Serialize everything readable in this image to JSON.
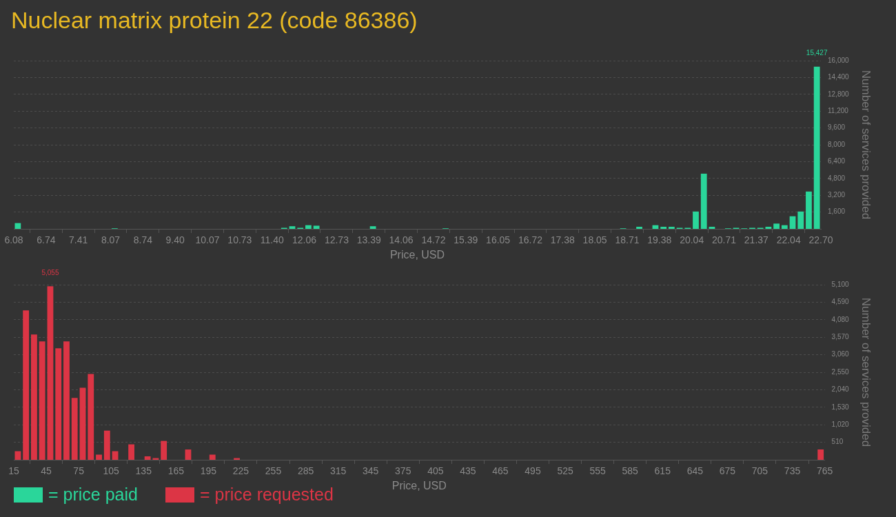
{
  "chart_data": [
    {
      "type": "histogram",
      "title": "Nuclear matrix protein 22 (code 86386)",
      "xlabel": "Price, USD",
      "ylabel": "Number of services provided",
      "bins": [
        6.08,
        6.2462,
        6.4124,
        6.5786,
        6.7448,
        6.911,
        7.0772,
        7.2434,
        7.4096,
        7.5758,
        7.742,
        7.9082,
        8.0744,
        8.2406,
        8.4068,
        8.573,
        8.7392,
        8.9054,
        9.0716,
        9.2378,
        9.404,
        9.5702,
        9.7364,
        9.9026,
        10.0688,
        10.235,
        10.4012,
        10.5674,
        10.7336,
        10.8998,
        11.066,
        11.2322,
        11.3984,
        11.5646,
        11.7308,
        11.897,
        12.0632,
        12.2294,
        12.3956,
        12.5618,
        12.728,
        12.8942,
        13.0604,
        13.2266,
        13.3928,
        13.559,
        13.7252,
        13.8914,
        14.0576,
        14.2238,
        14.39,
        14.5562,
        14.7224,
        14.8886,
        15.0548,
        15.221,
        15.3872,
        15.5534,
        15.7196,
        15.8858,
        16.052,
        16.2182,
        16.3844,
        16.5506,
        16.7168,
        16.883,
        17.0492,
        17.2154,
        17.3816,
        17.5478,
        17.714,
        17.8802,
        18.0464,
        18.2126,
        18.3788,
        18.545,
        18.7112,
        18.8774,
        19.0436,
        19.2098,
        19.376,
        19.5422,
        19.7084,
        19.8746,
        20.0408,
        20.207,
        20.3732,
        20.5394,
        20.7056,
        20.8718,
        21.038,
        21.2042,
        21.3704,
        21.5366,
        21.7028,
        21.869,
        22.0352,
        22.2014,
        22.3676,
        22.5338,
        22.7
      ],
      "series": [
        {
          "name": "= price paid",
          "color": "#2ad69a",
          "values": [
            550,
            0,
            0,
            0,
            0,
            0,
            0,
            0,
            0,
            0,
            0,
            0,
            50,
            0,
            0,
            0,
            0,
            0,
            0,
            0,
            0,
            0,
            0,
            0,
            0,
            0,
            0,
            0,
            0,
            0,
            0,
            0,
            0,
            100,
            250,
            100,
            350,
            300,
            0,
            0,
            0,
            0,
            0,
            0,
            250,
            0,
            0,
            0,
            0,
            0,
            0,
            0,
            0,
            50,
            0,
            0,
            0,
            0,
            0,
            0,
            0,
            0,
            0,
            0,
            0,
            0,
            0,
            0,
            0,
            0,
            0,
            0,
            0,
            0,
            0,
            50,
            0,
            200,
            0,
            350,
            200,
            200,
            100,
            100,
            1650,
            5250,
            200,
            0,
            50,
            100,
            50,
            100,
            100,
            200,
            500,
            350,
            1200,
            1650,
            3550,
            15427
          ],
          "value_labels": [
            null,
            null,
            null,
            null,
            null,
            null,
            null,
            null,
            null,
            null,
            null,
            null,
            null,
            null,
            null,
            null,
            null,
            null,
            null,
            null,
            null,
            null,
            null,
            null,
            null,
            null,
            null,
            null,
            null,
            null,
            null,
            null,
            null,
            null,
            null,
            null,
            null,
            null,
            null,
            null,
            null,
            null,
            null,
            null,
            null,
            null,
            null,
            null,
            null,
            null,
            null,
            null,
            null,
            null,
            null,
            null,
            null,
            null,
            null,
            null,
            null,
            null,
            null,
            null,
            null,
            null,
            null,
            null,
            null,
            null,
            null,
            null,
            null,
            null,
            null,
            null,
            null,
            null,
            null,
            null,
            null,
            null,
            null,
            null,
            null,
            null,
            null,
            null,
            null,
            null,
            null,
            null,
            null,
            null,
            null,
            null,
            null,
            null,
            null,
            "15,427"
          ]
        }
      ],
      "xlim": [
        6.08,
        22.7
      ],
      "xticks": [
        6.08,
        {
          "value": 6.7448,
          "label": "6.74"
        },
        {
          "value": 7.4096,
          "label": "7.41"
        },
        {
          "value": 8.0744,
          "label": "8.07"
        },
        {
          "value": 8.7392,
          "label": "8.74"
        },
        {
          "value": 9.404,
          "label": "9.40"
        },
        {
          "value": 10.0688,
          "label": "10.07"
        },
        {
          "value": 10.7336,
          "label": "10.73"
        },
        {
          "value": 11.3984,
          "label": "11.40"
        },
        {
          "value": 12.0632,
          "label": "12.06"
        },
        {
          "value": 12.728,
          "label": "12.73"
        },
        {
          "value": 13.3928,
          "label": "13.39"
        },
        {
          "value": 14.0576,
          "label": "14.06"
        },
        {
          "value": 14.7224,
          "label": "14.72"
        },
        {
          "value": 15.3872,
          "label": "15.39"
        },
        {
          "value": 16.052,
          "label": "16.05"
        },
        {
          "value": 16.7168,
          "label": "16.72"
        },
        {
          "value": 17.3816,
          "label": "17.38"
        },
        {
          "value": 18.0464,
          "label": "18.05"
        },
        {
          "value": 18.7112,
          "label": "18.71"
        },
        {
          "value": 19.376,
          "label": "19.38"
        },
        {
          "value": 20.0408,
          "label": "20.04"
        },
        {
          "value": 20.7056,
          "label": "20.71"
        },
        {
          "value": 21.3704,
          "label": "21.37"
        },
        {
          "value": 22.0352,
          "label": "22.04"
        },
        {
          "value": 22.7,
          "label": "22.70"
        }
      ],
      "ylim": [
        0,
        16000
      ],
      "yticks": [
        {
          "value": 1600,
          "label": "1,600"
        },
        {
          "value": 3200,
          "label": "3,200"
        },
        {
          "value": 4800,
          "label": "4,800"
        },
        {
          "value": 6400,
          "label": "6,400"
        },
        {
          "value": 8000,
          "label": "8,000"
        },
        {
          "value": 9600,
          "label": "9,600"
        },
        {
          "value": 11200,
          "label": "11,200"
        },
        {
          "value": 12800,
          "label": "12,800"
        },
        {
          "value": 14400,
          "label": "14,400"
        },
        {
          "value": 16000,
          "label": "16,000"
        }
      ],
      "grid": "y",
      "legend": "bottom left"
    },
    {
      "type": "histogram",
      "xlabel": "Price, USD",
      "ylabel": "Number of services provided",
      "bins": [
        15,
        22.5,
        30,
        37.5,
        45,
        52.5,
        60,
        67.5,
        75,
        82.5,
        90,
        97.5,
        105,
        112.5,
        120,
        127.5,
        135,
        142.5,
        150,
        157.5,
        165,
        172.5,
        180,
        187.5,
        195,
        202.5,
        210,
        217.5,
        225,
        232.5,
        240,
        247.5,
        255,
        262.5,
        270,
        277.5,
        285,
        292.5,
        300,
        307.5,
        315,
        322.5,
        330,
        337.5,
        345,
        352.5,
        360,
        367.5,
        375,
        382.5,
        390,
        397.5,
        405,
        412.5,
        420,
        427.5,
        435,
        442.5,
        450,
        457.5,
        465,
        472.5,
        480,
        487.5,
        495,
        502.5,
        510,
        517.5,
        525,
        532.5,
        540,
        547.5,
        555,
        562.5,
        570,
        577.5,
        585,
        592.5,
        600,
        607.5,
        615,
        622.5,
        630,
        637.5,
        645,
        652.5,
        660,
        667.5,
        675,
        682.5,
        690,
        697.5,
        705,
        712.5,
        720,
        727.5,
        735,
        742.5,
        750,
        757.5,
        765
      ],
      "series": [
        {
          "name": "= price requested",
          "color": "#dc3545",
          "values": [
            250,
            4350,
            3650,
            3450,
            5055,
            3250,
            3450,
            1800,
            2100,
            2500,
            150,
            850,
            250,
            0,
            450,
            0,
            100,
            50,
            550,
            0,
            0,
            300,
            0,
            0,
            150,
            0,
            0,
            50,
            0,
            0,
            0,
            0,
            0,
            0,
            0,
            0,
            0,
            0,
            0,
            0,
            0,
            0,
            0,
            0,
            0,
            0,
            0,
            0,
            0,
            0,
            0,
            0,
            0,
            0,
            0,
            0,
            0,
            0,
            0,
            0,
            0,
            0,
            0,
            0,
            0,
            0,
            0,
            0,
            0,
            0,
            0,
            0,
            0,
            0,
            0,
            0,
            0,
            0,
            0,
            0,
            0,
            0,
            0,
            0,
            0,
            0,
            0,
            0,
            0,
            0,
            0,
            0,
            0,
            0,
            0,
            0,
            0,
            0,
            0,
            300
          ],
          "value_labels": [
            null,
            null,
            null,
            null,
            "5,055",
            null,
            null,
            null,
            null,
            null,
            null,
            null,
            null,
            null,
            null,
            null,
            null,
            null,
            null,
            null,
            null,
            null,
            null,
            null,
            null,
            null,
            null,
            null,
            null,
            null,
            null,
            null,
            null,
            null,
            null,
            null,
            null,
            null,
            null,
            null,
            null,
            null,
            null,
            null,
            null,
            null,
            null,
            null,
            null,
            null,
            null,
            null,
            null,
            null,
            null,
            null,
            null,
            null,
            null,
            null,
            null,
            null,
            null,
            null,
            null,
            null,
            null,
            null,
            null,
            null,
            null,
            null,
            null,
            null,
            null,
            null,
            null,
            null,
            null,
            null,
            null,
            null,
            null,
            null,
            null,
            null,
            null,
            null,
            null,
            null,
            null,
            null,
            null,
            null,
            null,
            null,
            null,
            null,
            null,
            null
          ]
        }
      ],
      "xlim": [
        15,
        765
      ],
      "xticks": [
        15,
        45,
        75,
        105,
        135,
        165,
        195,
        225,
        255,
        285,
        315,
        345,
        375,
        405,
        435,
        465,
        495,
        525,
        555,
        585,
        615,
        645,
        675,
        705,
        735,
        765
      ],
      "ylim": [
        0,
        5100
      ],
      "yticks": [
        {
          "value": 510,
          "label": "510"
        },
        {
          "value": 1020,
          "label": "1,020"
        },
        {
          "value": 1530,
          "label": "1,530"
        },
        {
          "value": 2040,
          "label": "2,040"
        },
        {
          "value": 2550,
          "label": "2,550"
        },
        {
          "value": 3060,
          "label": "3,060"
        },
        {
          "value": 3570,
          "label": "3,570"
        },
        {
          "value": 4080,
          "label": "4,080"
        },
        {
          "value": 4590,
          "label": "4,590"
        },
        {
          "value": 5100,
          "label": "5,100"
        }
      ],
      "grid": "y",
      "legend": "bottom left"
    }
  ]
}
